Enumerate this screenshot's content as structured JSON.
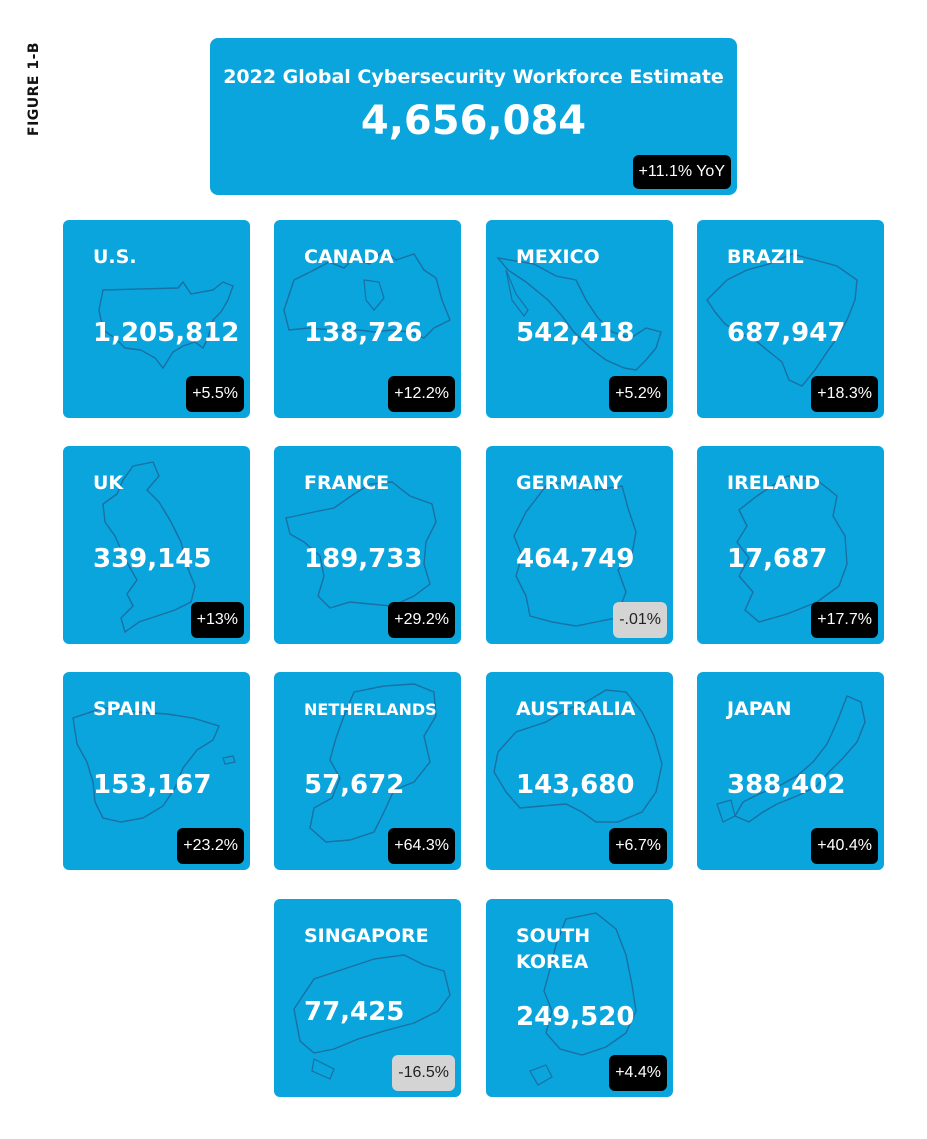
{
  "figure_label": "FIGURE 1-B",
  "total": {
    "title": "2022 Global Cybersecurity Workforce Estimate",
    "value": "4,656,084",
    "change": "+11.1% YoY"
  },
  "colors": {
    "card": "#0aa5dd",
    "badge_positive": "#000000",
    "badge_negative": "#d4d4d4",
    "map_outline": "#1a6fa3"
  },
  "countries": [
    {
      "name": "U.S.",
      "value": "1,205,812",
      "change": "+5.5%",
      "trend": "positive",
      "icon": "us-map-icon"
    },
    {
      "name": "CANADA",
      "value": "138,726",
      "change": "+12.2%",
      "trend": "positive",
      "icon": "canada-map-icon"
    },
    {
      "name": "MEXICO",
      "value": "542,418",
      "change": "+5.2%",
      "trend": "positive",
      "icon": "mexico-map-icon"
    },
    {
      "name": "BRAZIL",
      "value": "687,947",
      "change": "+18.3%",
      "trend": "positive",
      "icon": "brazil-map-icon"
    },
    {
      "name": "UK",
      "value": "339,145",
      "change": "+13%",
      "trend": "positive",
      "icon": "uk-map-icon"
    },
    {
      "name": "FRANCE",
      "value": "189,733",
      "change": "+29.2%",
      "trend": "positive",
      "icon": "france-map-icon"
    },
    {
      "name": "GERMANY",
      "value": "464,749",
      "change": "-.01%",
      "trend": "negative",
      "icon": "germany-map-icon"
    },
    {
      "name": "IRELAND",
      "value": "17,687",
      "change": "+17.7%",
      "trend": "positive",
      "icon": "ireland-map-icon"
    },
    {
      "name": "SPAIN",
      "value": "153,167",
      "change": "+23.2%",
      "trend": "positive",
      "icon": "spain-map-icon"
    },
    {
      "name": "NETHERLANDS",
      "value": "57,672",
      "change": "+64.3%",
      "trend": "positive",
      "icon": "netherlands-map-icon"
    },
    {
      "name": "AUSTRALIA",
      "value": "143,680",
      "change": "+6.7%",
      "trend": "positive",
      "icon": "australia-map-icon"
    },
    {
      "name": "JAPAN",
      "value": "388,402",
      "change": "+40.4%",
      "trend": "positive",
      "icon": "japan-map-icon"
    },
    {
      "name": "SINGAPORE",
      "value": "77,425",
      "change": "-16.5%",
      "trend": "negative",
      "icon": "singapore-map-icon"
    },
    {
      "name": "SOUTH KOREA",
      "value": "249,520",
      "change": "+4.4%",
      "trend": "positive",
      "icon": "south-korea-map-icon"
    }
  ]
}
